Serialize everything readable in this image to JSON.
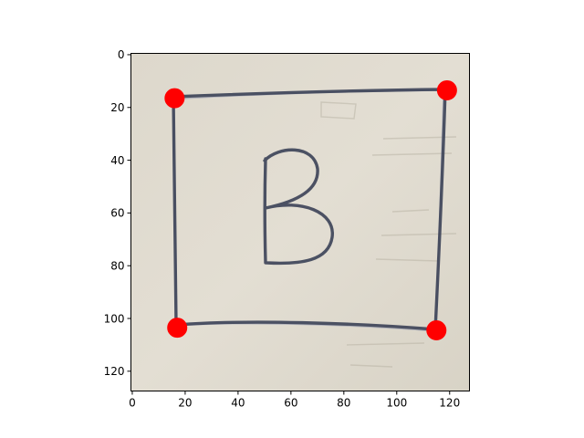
{
  "chart_data": {
    "type": "scatter",
    "title": "",
    "xlabel": "",
    "ylabel": "",
    "image_size": [
      128,
      128
    ],
    "xlim": [
      -0.5,
      127.5
    ],
    "ylim": [
      127.5,
      -0.5
    ],
    "y_inverted": true,
    "grid": false,
    "legend": "none",
    "x_ticks": [
      0,
      20,
      40,
      60,
      80,
      100,
      120
    ],
    "y_ticks": [
      0,
      20,
      40,
      60,
      80,
      100,
      120
    ],
    "x_tick_labels": [
      "0",
      "20",
      "40",
      "60",
      "80",
      "100",
      "120"
    ],
    "y_tick_labels": [
      "0",
      "20",
      "40",
      "60",
      "80",
      "100",
      "120"
    ],
    "series": [
      {
        "marker": "circle",
        "color": "#ff0000",
        "points": [
          {
            "x": 16,
            "y": 16.5
          },
          {
            "x": 119,
            "y": 13.5
          },
          {
            "x": 17,
            "y": 103.5
          },
          {
            "x": 115,
            "y": 104.5
          }
        ]
      }
    ],
    "background_image": {
      "description_icon": "handwritten-letter-photo-icon",
      "handwritten_letter": "B",
      "colors": {
        "paper": "#ddd8cc",
        "ink": "#3b4157"
      }
    }
  }
}
